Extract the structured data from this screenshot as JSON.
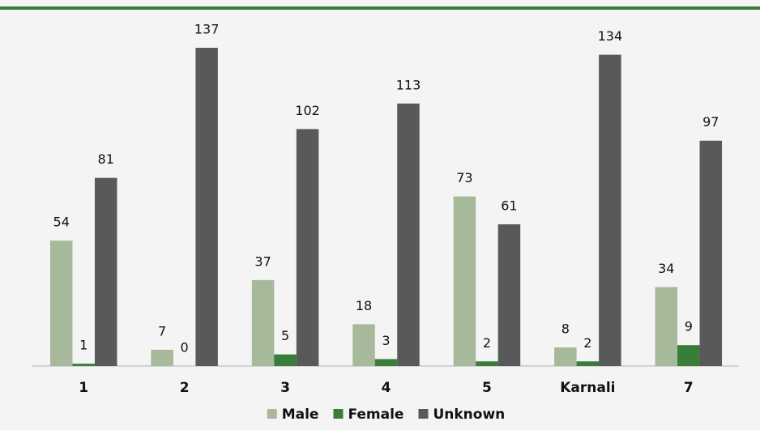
{
  "chart_data": {
    "type": "bar",
    "categories": [
      "1",
      "2",
      "3",
      "4",
      "5",
      "Karnali",
      "7"
    ],
    "series": [
      {
        "name": "Male",
        "color": "#a7b99b",
        "values": [
          54,
          7,
          37,
          18,
          73,
          8,
          34
        ]
      },
      {
        "name": "Female",
        "color": "#3a7d38",
        "values": [
          1,
          0,
          5,
          3,
          2,
          2,
          9
        ]
      },
      {
        "name": "Unknown",
        "color": "#58595b",
        "values": [
          81,
          137,
          102,
          113,
          61,
          134,
          97
        ]
      }
    ],
    "legend": "bottom"
  }
}
